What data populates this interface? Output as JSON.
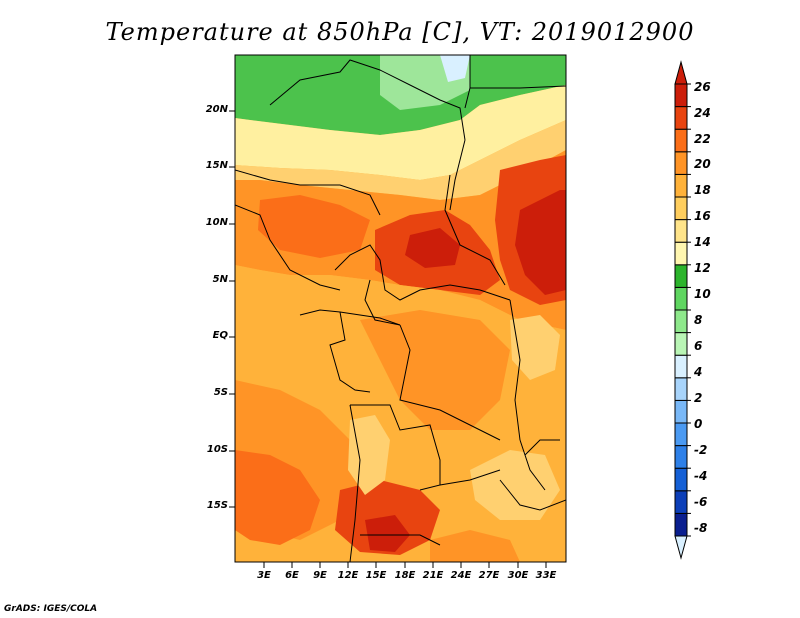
{
  "title": "Temperature at 850hPa [C], VT: 2019012900",
  "credit": "GrADS: IGES/COLA",
  "lat_labels": [
    "20N",
    "15N",
    "10N",
    "5N",
    "EQ",
    "5S",
    "10S",
    "15S"
  ],
  "lon_labels": [
    "3E",
    "6E",
    "9E",
    "12E",
    "15E",
    "18E",
    "21E",
    "24E",
    "27E",
    "30E",
    "33E"
  ],
  "colorbar": {
    "labels": [
      "26",
      "24",
      "22",
      "20",
      "18",
      "16",
      "14",
      "12",
      "10",
      "8",
      "6",
      "4",
      "2",
      "0",
      "-2",
      "-4",
      "-6",
      "-8"
    ],
    "colors": [
      "#d9f0ff",
      "#0a1f8f",
      "#0c3fb8",
      "#1560d6",
      "#2e80e8",
      "#4b9af2",
      "#79b8f7",
      "#a8d4fb",
      "#d9f0ff",
      "#b9f5b5",
      "#8ee88b",
      "#5fd660",
      "#2cb42c",
      "#fff6b0",
      "#ffe48a",
      "#ffce5e",
      "#ffb23a",
      "#ff9426",
      "#fb6e18",
      "#e84410",
      "#cc1e0a",
      "#cc1e0a"
    ]
  },
  "map_fill_colors": {
    "green_dark": "#4cc24c",
    "green_light": "#9ee69a",
    "yellow": "#fff0a0",
    "yellow_orange": "#ffd070",
    "orange_light": "#ffb23a",
    "orange": "#ff9426",
    "orange_dark": "#fb6e18",
    "red": "#e84410",
    "red_dark": "#cc1e0a",
    "cyan": "#d9f0ff"
  }
}
